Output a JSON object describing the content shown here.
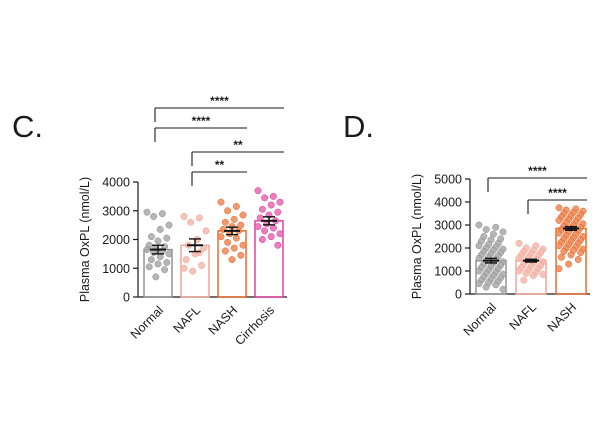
{
  "chart_data": [
    {
      "panel": "C.",
      "type": "bar",
      "ylabel": "Plasma OxPL (nmol/L)",
      "ylim": [
        0,
        4000
      ],
      "yticks": [
        0,
        1000,
        2000,
        3000,
        4000
      ],
      "categories": [
        "Normal",
        "NAFL",
        "NASH",
        "Cirrhosis"
      ],
      "values": [
        1650,
        1800,
        2300,
        2650
      ],
      "errors": [
        150,
        220,
        130,
        140
      ],
      "colors": [
        "#8c8c8c",
        "#f0a090",
        "#e8601e",
        "#e0359a"
      ],
      "points": [
        [
          2950,
          2900,
          2800,
          2500,
          2350,
          2100,
          2050,
          1950,
          1800,
          1750,
          1700,
          1650,
          1600,
          1550,
          1500,
          1400,
          1300,
          1200,
          1150,
          1050,
          950,
          700
        ],
        [
          2800,
          2750,
          2600,
          2300,
          2000,
          1800,
          1700,
          1500,
          1300,
          1100,
          900,
          1000,
          1550
        ],
        [
          3300,
          3150,
          3000,
          2850,
          2700,
          2600,
          2500,
          2450,
          2350,
          2300,
          2200,
          2100,
          2050,
          1900,
          1800,
          1700,
          1600,
          1450,
          1300
        ],
        [
          3700,
          3500,
          3450,
          3300,
          3200,
          3050,
          2950,
          2850,
          2750,
          2650,
          2550,
          2450,
          2400,
          2300,
          2200,
          2100,
          2000,
          1800
        ]
      ],
      "significance": [
        {
          "from": 0,
          "to": 3,
          "label": "****"
        },
        {
          "from": 0,
          "to": 2,
          "label": "****"
        },
        {
          "from": 1,
          "to": 3,
          "label": "**"
        },
        {
          "from": 1,
          "to": 2,
          "label": "**"
        }
      ]
    },
    {
      "panel": "D.",
      "type": "bar",
      "ylabel": "Plasma OxPL (nmol/L)",
      "ylim": [
        0,
        5000
      ],
      "yticks": [
        0,
        1000,
        2000,
        3000,
        4000,
        5000
      ],
      "categories": [
        "Normal",
        "NAFL",
        "NASH"
      ],
      "values": [
        1450,
        1450,
        2850
      ],
      "errors": [
        100,
        60,
        80
      ],
      "colors": [
        "#8c8c8c",
        "#f0a090",
        "#e8601e"
      ],
      "points": [
        [
          3000,
          2900,
          2800,
          2700,
          2600,
          2500,
          2400,
          2350,
          2300,
          2200,
          2150,
          2100,
          2050,
          2000,
          1950,
          1900,
          1850,
          1800,
          1750,
          1700,
          1650,
          1600,
          1550,
          1500,
          1450,
          1400,
          1350,
          1300,
          1250,
          1200,
          1150,
          1100,
          1050,
          1000,
          950,
          900,
          850,
          800,
          750,
          700,
          650,
          600,
          550,
          500,
          450,
          400,
          300,
          200
        ],
        [
          2200,
          2100,
          2000,
          1950,
          1900,
          1850,
          1800,
          1750,
          1700,
          1650,
          1600,
          1550,
          1500,
          1450,
          1400,
          1350,
          1300,
          1250,
          1200,
          1150,
          1100,
          1050,
          1000,
          950,
          900,
          850,
          800,
          600
        ],
        [
          3750,
          3700,
          3650,
          3600,
          3550,
          3500,
          3450,
          3400,
          3350,
          3300,
          3250,
          3200,
          3150,
          3100,
          3050,
          3000,
          2950,
          2900,
          2850,
          2800,
          2750,
          2700,
          2650,
          2600,
          2550,
          2500,
          2450,
          2400,
          2350,
          2300,
          2250,
          2200,
          2150,
          2100,
          2050,
          2000,
          1950,
          1900,
          1850,
          1800,
          1700,
          1600,
          1500,
          1300,
          1100
        ]
      ],
      "significance": [
        {
          "from": 0,
          "to": 2,
          "label": "****"
        },
        {
          "from": 1,
          "to": 2,
          "label": "****"
        }
      ]
    }
  ]
}
